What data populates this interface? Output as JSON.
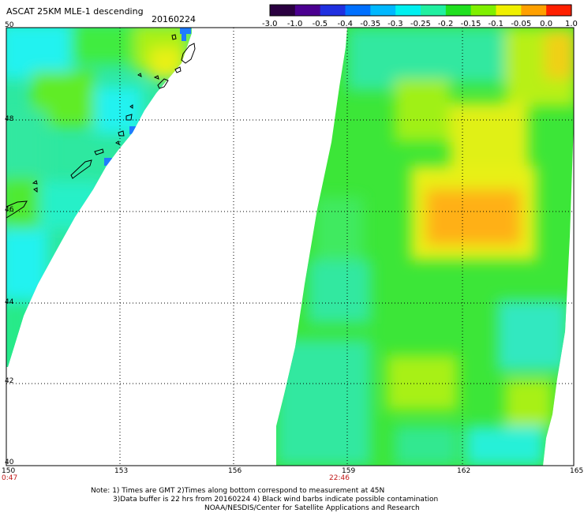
{
  "header": {
    "title": "ASCAT 25KM MLE-1 descending",
    "date": "20160224"
  },
  "colorbar": {
    "tick_labels": [
      "-3.0",
      "-1.0",
      "-0.5",
      "-0.4",
      "-0.35",
      "-0.3",
      "-0.25",
      "-0.2",
      "-0.15",
      "-0.1",
      "-0.05",
      "0.0",
      "1.0"
    ],
    "colors": [
      "#2a0040",
      "#4b0090",
      "#2030e0",
      "#0070ff",
      "#00b8ff",
      "#00f0f0",
      "#20f0a0",
      "#20e020",
      "#80f000",
      "#f0f000",
      "#ffa000",
      "#ff2000"
    ]
  },
  "axes": {
    "x_tick_labels": [
      "150",
      "153",
      "156",
      "159",
      "162",
      "165"
    ],
    "y_tick_labels": [
      "50",
      "48",
      "46",
      "44",
      "42",
      "40"
    ],
    "time_labels": [
      "0:47",
      "22:46"
    ]
  },
  "notes": {
    "line1": "Note: 1) Times are GMT 2)Times along bottom correspond to measurement at 45N",
    "line2": "3)Data buffer is 22 hrs from 20160224 4) Black wind barbs indicate possible contamination",
    "line3": "NOAA/NESDIS/Center for Satellite Applications and Research"
  },
  "palette": {
    "cyan": "#22f2f0",
    "aqua_green": "#28f0a8",
    "green": "#30e828",
    "lime": "#90f018",
    "yellow": "#e8f018",
    "orange": "#ffb018",
    "blue": "#1e7cff",
    "grid": "#000000",
    "time_label": "#c01818"
  }
}
